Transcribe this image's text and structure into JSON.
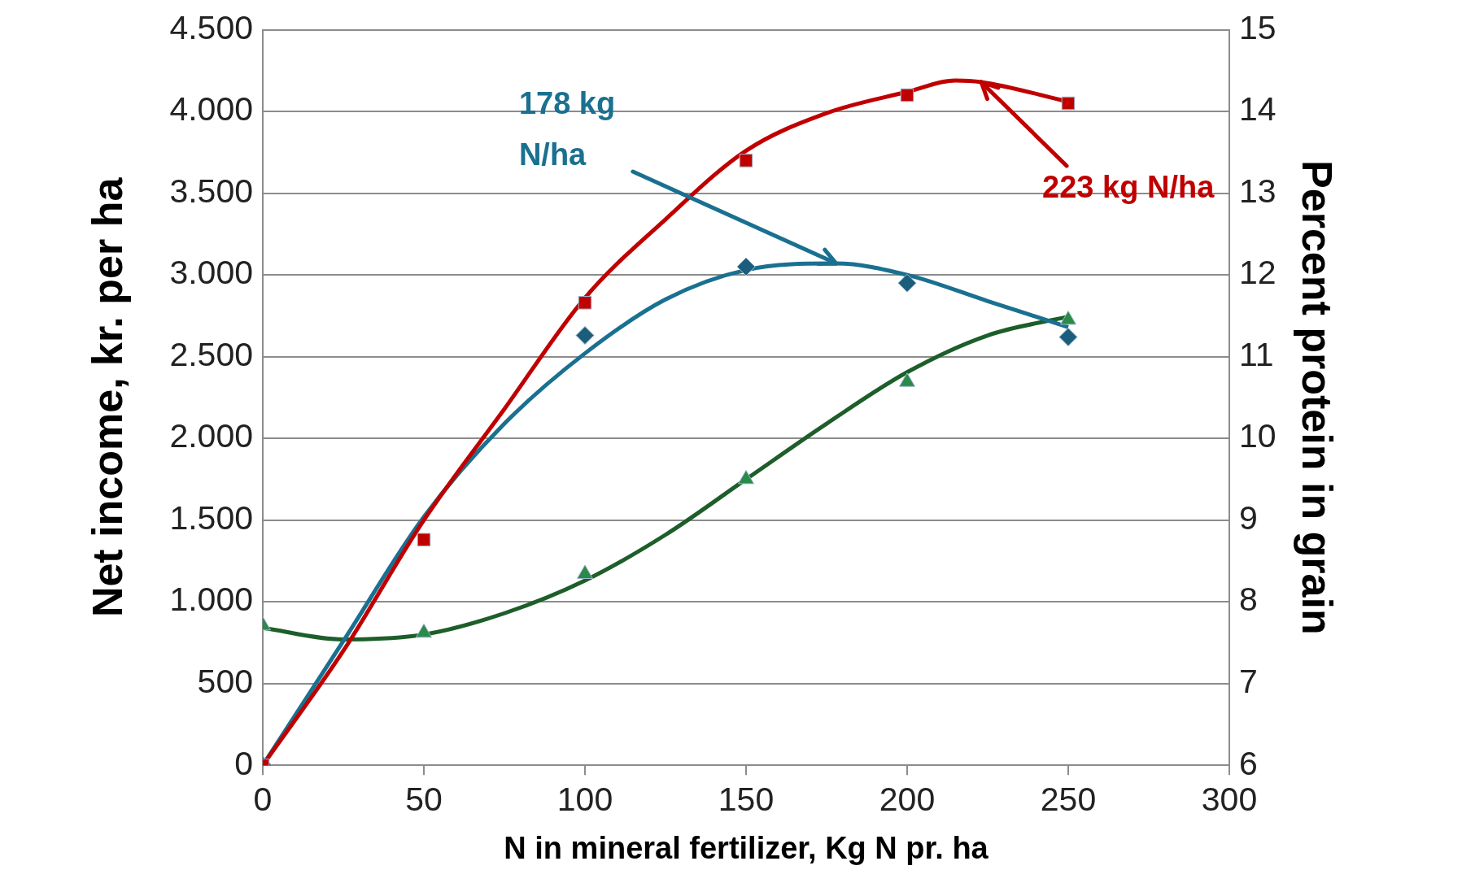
{
  "chart_data": {
    "type": "scatter",
    "xlabel": "N in mineral fertilizer, Kg N pr. ha",
    "ylabel": "Net income, kr. per ha",
    "y2label": "Percent protein in grain",
    "xlim": [
      0,
      300
    ],
    "xticks": [
      0,
      50,
      100,
      150,
      200,
      250,
      300
    ],
    "ylim": [
      0,
      4500
    ],
    "yticks": [
      {
        "value": 0,
        "label": "0"
      },
      {
        "value": 500,
        "label": "500"
      },
      {
        "value": 1000,
        "label": "1.000"
      },
      {
        "value": 1500,
        "label": "1.500"
      },
      {
        "value": 2000,
        "label": "2.000"
      },
      {
        "value": 2500,
        "label": "2.500"
      },
      {
        "value": 3000,
        "label": "3.000"
      },
      {
        "value": 3500,
        "label": "3.500"
      },
      {
        "value": 4000,
        "label": "4.000"
      },
      {
        "value": 4500,
        "label": "4.500"
      }
    ],
    "y2lim": [
      6,
      15
    ],
    "y2ticks": [
      6,
      7,
      8,
      9,
      10,
      11,
      12,
      13,
      14,
      15
    ],
    "grid": "y",
    "legend": false,
    "series": [
      {
        "type": "line",
        "color": "#c00000",
        "marker": "none",
        "x": [
          0,
          25,
          50,
          75,
          100,
          125,
          150,
          175,
          200,
          215,
          223,
          250
        ],
        "values": [
          0,
          700,
          1500,
          2180,
          2860,
          3340,
          3760,
          3990,
          4120,
          4190,
          4180,
          4060
        ]
      },
      {
        "type": "line",
        "color": "#1a7090",
        "marker": "none",
        "x": [
          0,
          25,
          50,
          75,
          100,
          125,
          150,
          178,
          200,
          225,
          250
        ],
        "values": [
          0,
          760,
          1520,
          2090,
          2520,
          2850,
          3030,
          3070,
          3000,
          2840,
          2680
        ]
      },
      {
        "type": "line",
        "color": "#1d5e2a",
        "marker": "none",
        "axis": "y2",
        "x": [
          0,
          25,
          50,
          75,
          100,
          125,
          150,
          175,
          200,
          225,
          250
        ],
        "values": [
          7.68,
          7.54,
          7.6,
          7.86,
          8.26,
          8.82,
          9.5,
          10.18,
          10.81,
          11.26,
          11.49
        ]
      },
      {
        "color": "#c00000",
        "marker": "square",
        "x": [
          0,
          50,
          100,
          150,
          200,
          250
        ],
        "values": [
          0,
          1380,
          2830,
          3700,
          4100,
          4050
        ]
      },
      {
        "color": "#1b5e7b",
        "marker": "diamond",
        "x": [
          0,
          100,
          150,
          200,
          250
        ],
        "values": [
          0,
          2630,
          3050,
          2950,
          2620
        ]
      },
      {
        "color": "#2a8a4a",
        "marker": "triangle",
        "axis": "y2",
        "x": [
          0,
          50,
          100,
          150,
          200,
          250
        ],
        "values": [
          7.71,
          7.62,
          8.34,
          9.5,
          10.69,
          11.45
        ]
      }
    ],
    "annotations": [
      {
        "text": "178 kg N/ha",
        "x": 178,
        "y": 3070
      },
      {
        "text": "223 kg N/ha",
        "x": 223,
        "y": 4180
      }
    ]
  }
}
